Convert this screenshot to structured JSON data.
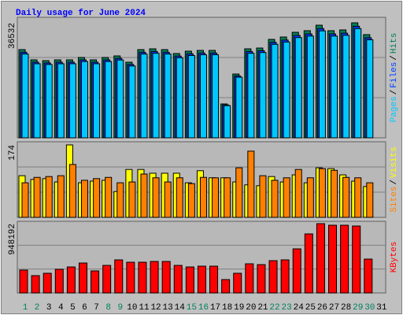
{
  "chart_data": [
    {
      "type": "bar",
      "title": "Daily usage for June 2024",
      "categories": [
        "1",
        "2",
        "3",
        "4",
        "5",
        "6",
        "7",
        "8",
        "9",
        "10",
        "11",
        "12",
        "13",
        "14",
        "15",
        "16",
        "17",
        "18",
        "19",
        "20",
        "21",
        "22",
        "23",
        "24",
        "25",
        "26",
        "27",
        "28",
        "29",
        "30",
        "31"
      ],
      "category_colors": [
        "#00805c",
        "#00805c",
        "#000000",
        "#000000",
        "#000000",
        "#000000",
        "#000000",
        "#00805c",
        "#00805c",
        "#000000",
        "#000000",
        "#000000",
        "#000000",
        "#000000",
        "#00805c",
        "#00805c",
        "#000000",
        "#000000",
        "#000000",
        "#000000",
        "#000000",
        "#00805c",
        "#00805c",
        "#000000",
        "#000000",
        "#000000",
        "#000000",
        "#000000",
        "#00805c",
        "#00805c",
        "#000000"
      ],
      "legend_separator": "/",
      "series": [
        {
          "name": "Hits",
          "color": "#00805c",
          "values": [
            28025,
            24772,
            24522,
            24772,
            24772,
            25521,
            24772,
            25521,
            26022,
            24021,
            28025,
            28274,
            28025,
            26774,
            27524,
            27774,
            27774,
            10760,
            20268,
            28274,
            28525,
            31277,
            32028,
            33529,
            34030,
            35782,
            34030,
            34280,
            36532,
            32778,
            0
          ]
        },
        {
          "name": "Files",
          "color": "#0040ff",
          "values": [
            27180,
            24030,
            23790,
            24030,
            24030,
            24760,
            24030,
            24760,
            25240,
            23300,
            27180,
            27430,
            27180,
            25970,
            26700,
            26940,
            26940,
            10440,
            19660,
            27430,
            27670,
            30340,
            31070,
            32520,
            33010,
            34710,
            33010,
            33250,
            35440,
            31790,
            0
          ]
        },
        {
          "name": "Pages",
          "color": "#00c8ff",
          "values": [
            26620,
            23530,
            23300,
            23530,
            23530,
            24240,
            23530,
            24240,
            24720,
            22820,
            26620,
            26860,
            26620,
            25440,
            26150,
            26390,
            26390,
            10220,
            19250,
            26860,
            27100,
            29710,
            30430,
            31850,
            32330,
            33990,
            32330,
            32570,
            34710,
            31140,
            0
          ]
        }
      ],
      "ylim": [
        0,
        36532
      ],
      "yticks": [
        36532
      ]
    },
    {
      "type": "bar",
      "legend_separator": "/",
      "series": [
        {
          "name": "Visits",
          "color": "#ffff00",
          "values": [
            100,
            91,
            93,
            85,
            174,
            83,
            87,
            89,
            62,
            115,
            115,
            106,
            106,
            106,
            83,
            112,
            95,
            95,
            85,
            78,
            76,
            98,
            85,
            102,
            83,
            119,
            117,
            102,
            87,
            74,
            0
          ]
        },
        {
          "name": "Sites",
          "color": "#ff8000",
          "values": [
            83,
            96,
            98,
            100,
            127,
            89,
            93,
            96,
            83,
            85,
            104,
            95,
            85,
            95,
            81,
            96,
            95,
            95,
            119,
            159,
            100,
            89,
            95,
            115,
            95,
            117,
            113,
            96,
            95,
            83,
            0
          ]
        }
      ],
      "ylim": [
        0,
        174
      ],
      "yticks": [
        174
      ]
    },
    {
      "type": "bar",
      "series": [
        {
          "name": "KBytes",
          "color": "#ff0000",
          "values": [
            312475,
            237050,
            269375,
            323250,
            355575,
            409450,
            301700,
            377125,
            452550,
            420225,
            420225,
            431000,
            431000,
            377125,
            355575,
            366350,
            366350,
            183175,
            269375,
            398675,
            387900,
            441775,
            452550,
            603400,
            808125,
            948192,
            926650,
            926650,
            915875,
            463325,
            0
          ]
        }
      ],
      "ylim": [
        0,
        948192
      ],
      "yticks": [
        948192
      ]
    }
  ]
}
